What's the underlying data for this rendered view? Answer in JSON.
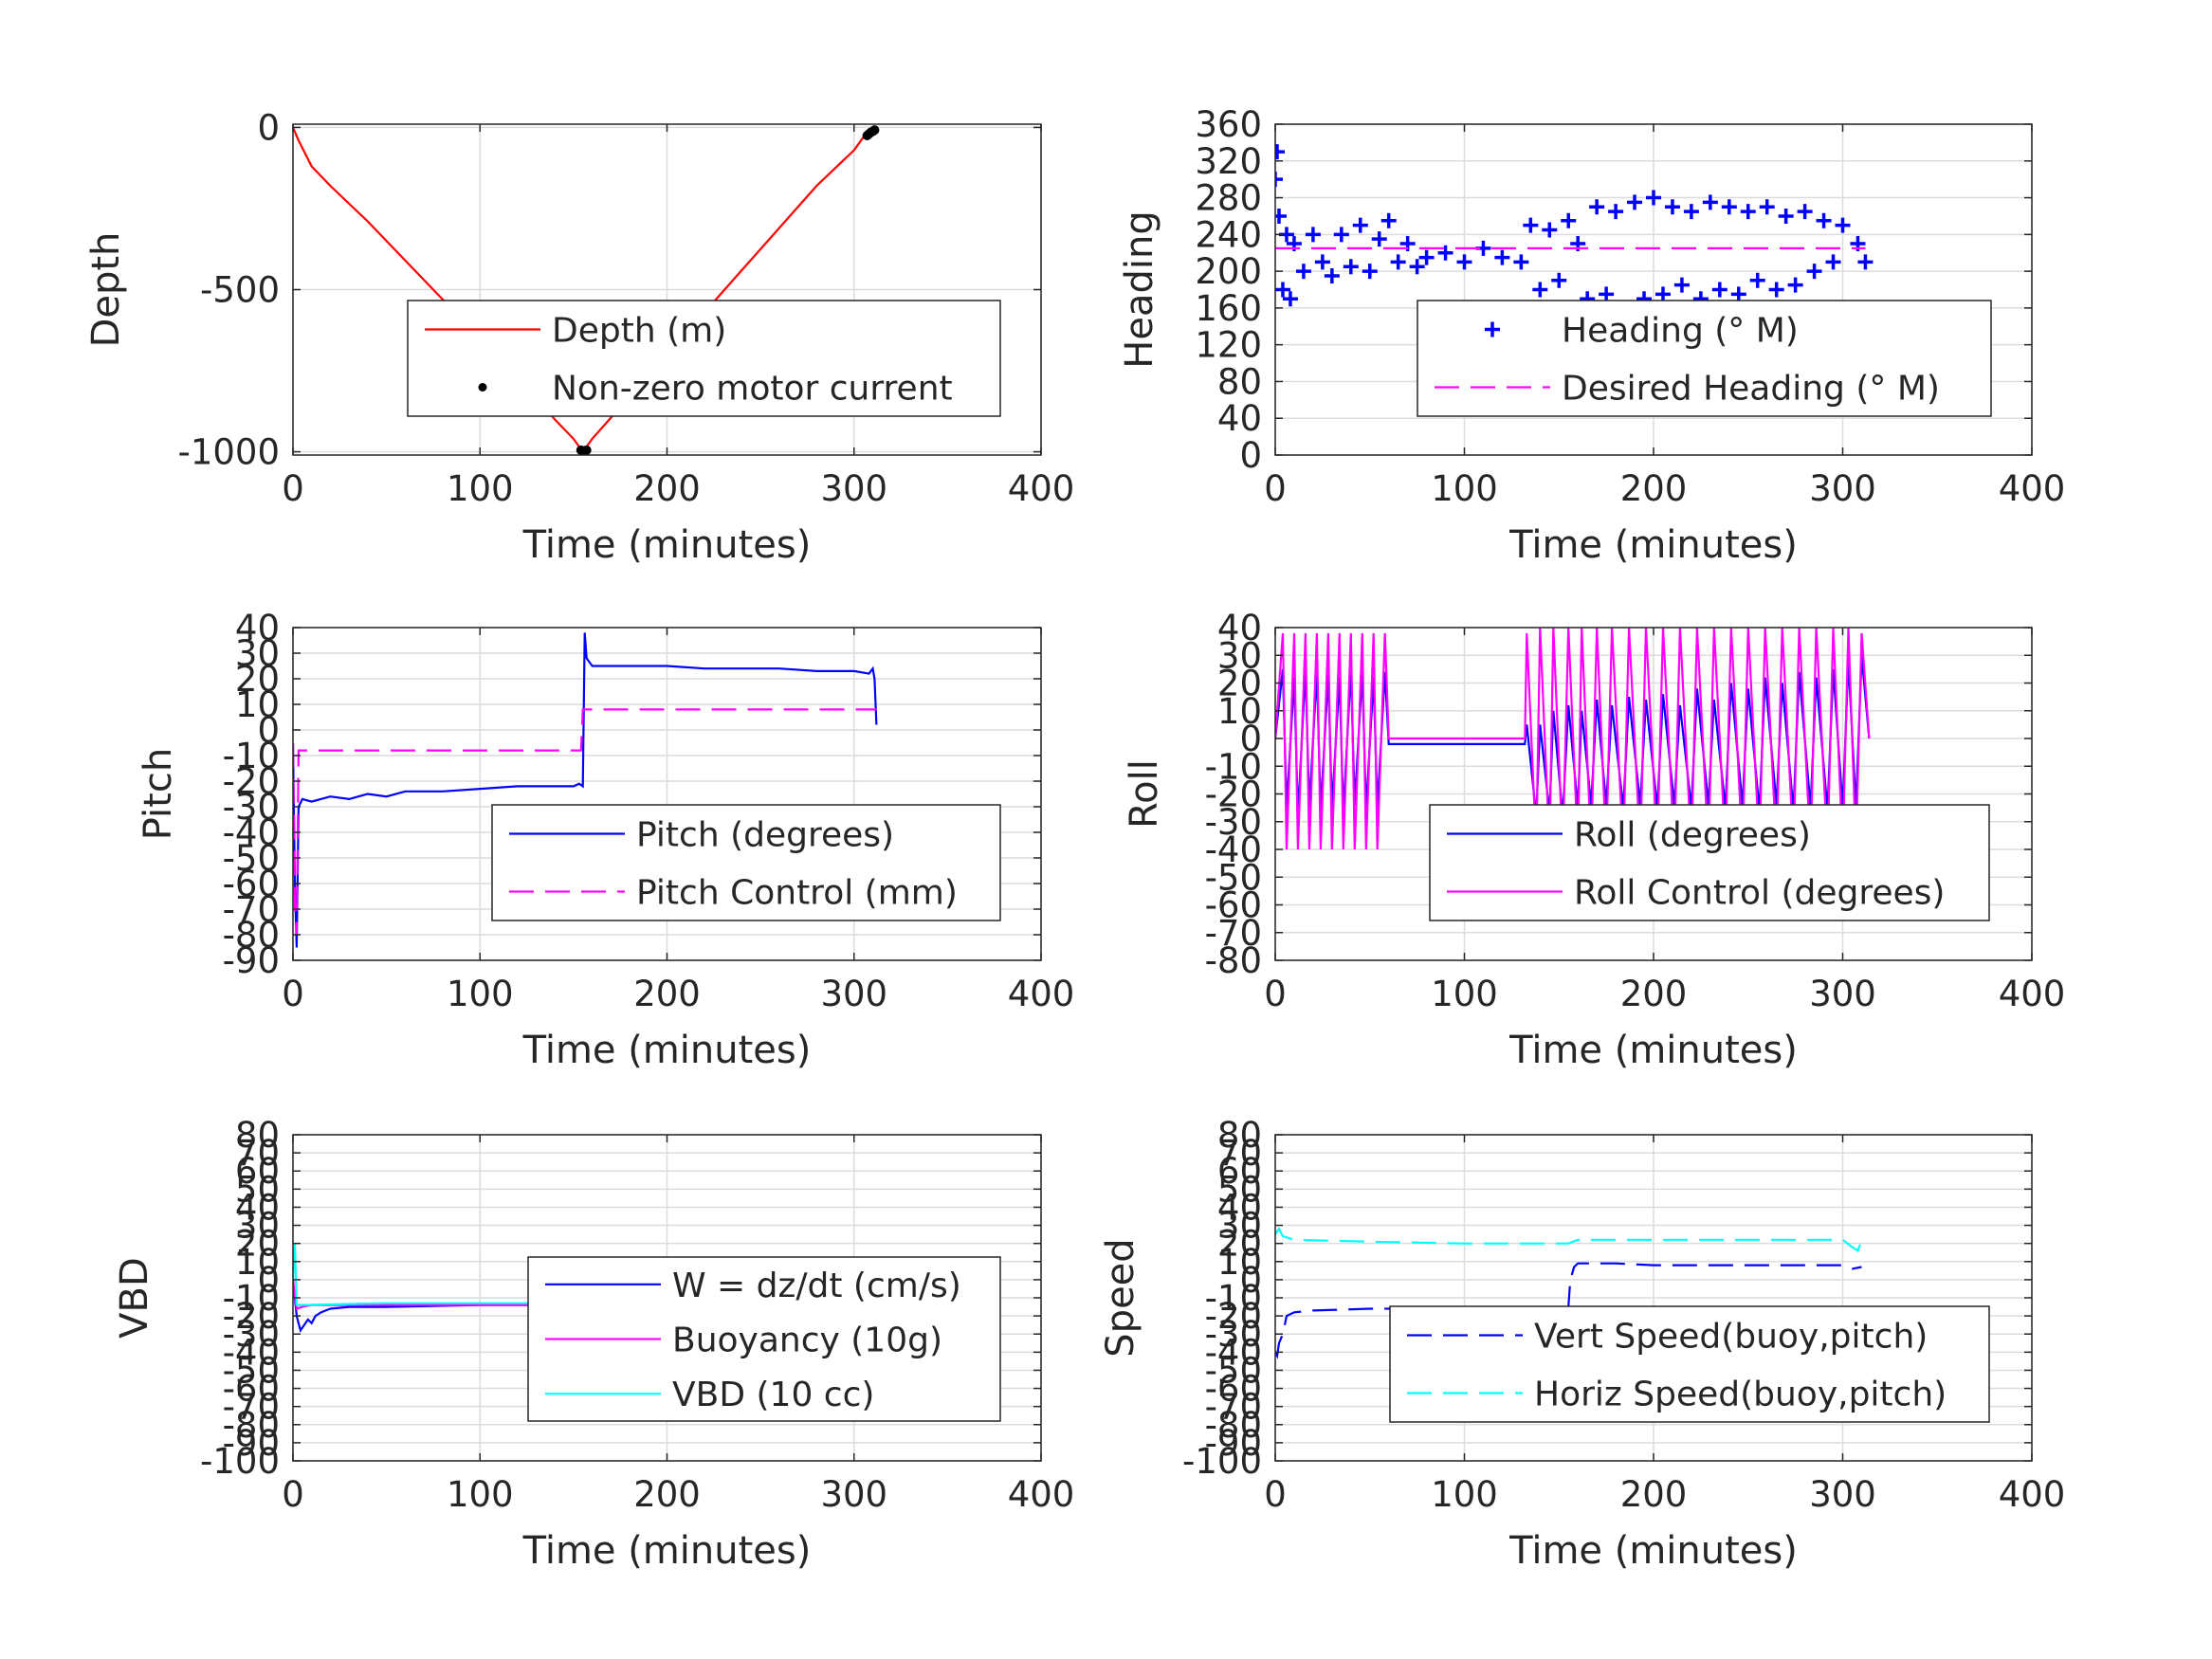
{
  "chart_data": [
    {
      "id": "depth",
      "type": "line",
      "xlabel": "Time (minutes)",
      "ylabel": "Depth",
      "xlim": [
        0,
        400
      ],
      "ylim": [
        -1010,
        10
      ],
      "xticks": [
        0,
        100,
        200,
        300,
        400
      ],
      "yticks": [
        -1000,
        -500,
        0
      ],
      "grid": true,
      "legend_location": "center-right",
      "series": [
        {
          "name": "Depth (m)",
          "style": "line",
          "color": "#ff0000",
          "x": [
            0,
            3,
            10,
            20,
            40,
            60,
            80,
            100,
            120,
            140,
            150,
            155,
            160,
            180,
            200,
            220,
            240,
            260,
            280,
            300,
            305,
            308,
            310
          ],
          "y": [
            0,
            -40,
            -120,
            -180,
            -290,
            -410,
            -530,
            -650,
            -770,
            -900,
            -960,
            -1000,
            -960,
            -830,
            -700,
            -570,
            -440,
            -310,
            -180,
            -70,
            -30,
            -15,
            -5
          ]
        },
        {
          "name": "Non-zero motor current",
          "style": "dots",
          "color": "#000000",
          "x": [
            154,
            155,
            156,
            157,
            307,
            308,
            309,
            310,
            311
          ],
          "y": [
            -995,
            -1000,
            -1000,
            -995,
            -25,
            -20,
            -15,
            -12,
            -8
          ]
        }
      ]
    },
    {
      "id": "heading",
      "type": "scatter",
      "xlabel": "Time (minutes)",
      "ylabel": "Heading",
      "xlim": [
        0,
        400
      ],
      "ylim": [
        0,
        360
      ],
      "xticks": [
        0,
        100,
        200,
        300,
        400
      ],
      "yticks": [
        0,
        40,
        80,
        120,
        160,
        200,
        240,
        280,
        320,
        360
      ],
      "grid": true,
      "legend_location": "lower-right",
      "series": [
        {
          "name": "Heading (° M)",
          "style": "plus",
          "color": "#0000ff",
          "x": [
            0,
            1,
            2,
            4,
            6,
            8,
            10,
            15,
            20,
            25,
            30,
            35,
            40,
            45,
            50,
            55,
            60,
            65,
            70,
            75,
            80,
            90,
            100,
            110,
            120,
            130,
            135,
            140,
            145,
            150,
            155,
            160,
            165,
            170,
            175,
            180,
            185,
            190,
            195,
            200,
            205,
            210,
            215,
            220,
            225,
            230,
            235,
            240,
            245,
            250,
            255,
            260,
            265,
            270,
            275,
            280,
            285,
            290,
            295,
            300,
            305,
            308,
            312
          ],
          "y": [
            300,
            330,
            260,
            180,
            240,
            170,
            230,
            200,
            240,
            210,
            195,
            240,
            205,
            250,
            200,
            235,
            255,
            210,
            230,
            205,
            215,
            220,
            210,
            225,
            215,
            210,
            250,
            180,
            245,
            190,
            255,
            230,
            170,
            270,
            175,
            265,
            160,
            275,
            170,
            280,
            175,
            270,
            185,
            265,
            170,
            275,
            180,
            270,
            175,
            265,
            190,
            270,
            180,
            260,
            185,
            265,
            200,
            255,
            210,
            250,
            145,
            230,
            210
          ]
        },
        {
          "name": "Desired Heading (° M)",
          "style": "dash",
          "color": "#ff00ff",
          "x": [
            0,
            50,
            100,
            150,
            200,
            250,
            312
          ],
          "y": [
            225,
            225,
            225,
            225,
            225,
            225,
            225
          ]
        }
      ]
    },
    {
      "id": "pitch",
      "type": "line",
      "xlabel": "Time (minutes)",
      "ylabel": "Pitch",
      "xlim": [
        0,
        400
      ],
      "ylim": [
        -90,
        40
      ],
      "xticks": [
        0,
        100,
        200,
        300,
        400
      ],
      "yticks": [
        -90,
        -80,
        -70,
        -60,
        -50,
        -40,
        -30,
        -20,
        -10,
        0,
        10,
        20,
        30,
        40
      ],
      "grid": true,
      "legend_location": "lower-right",
      "series": [
        {
          "name": "Pitch (degrees)",
          "style": "line",
          "color": "#0000ff",
          "x": [
            0,
            1,
            2,
            3,
            5,
            10,
            20,
            30,
            40,
            50,
            60,
            80,
            100,
            120,
            140,
            150,
            153,
            155,
            156,
            157,
            160,
            180,
            200,
            220,
            240,
            260,
            280,
            300,
            308,
            310,
            311,
            312
          ],
          "y": [
            -5,
            -60,
            -85,
            -30,
            -27,
            -28,
            -26,
            -27,
            -25,
            -26,
            -24,
            -24,
            -23,
            -22,
            -22,
            -22,
            -21,
            -22,
            38,
            28,
            25,
            25,
            25,
            24,
            24,
            24,
            23,
            23,
            22,
            24,
            20,
            2
          ]
        },
        {
          "name": "Pitch Control (mm)",
          "style": "dash",
          "color": "#ff00ff",
          "x": [
            0,
            1,
            2,
            3,
            5,
            50,
            100,
            150,
            154,
            155,
            156,
            200,
            250,
            300,
            310,
            312
          ],
          "y": [
            -5,
            -70,
            -80,
            -8,
            -8,
            -8,
            -8,
            -8,
            -8,
            8,
            8,
            8,
            8,
            8,
            8,
            8
          ]
        }
      ]
    },
    {
      "id": "roll",
      "type": "line",
      "xlabel": "Time (minutes)",
      "ylabel": "Roll",
      "xlim": [
        0,
        400
      ],
      "ylim": [
        -80,
        40
      ],
      "xticks": [
        0,
        100,
        200,
        300,
        400
      ],
      "yticks": [
        -80,
        -70,
        -60,
        -50,
        -40,
        -30,
        -20,
        -10,
        0,
        10,
        20,
        30,
        40
      ],
      "grid": true,
      "legend_location": "lower-right",
      "series": [
        {
          "name": "Roll (degrees)",
          "style": "line",
          "color": "#0000ff",
          "x": [
            0,
            4,
            6,
            10,
            12,
            16,
            18,
            22,
            24,
            28,
            30,
            34,
            36,
            40,
            42,
            46,
            48,
            52,
            54,
            58,
            60,
            70,
            100,
            125,
            132,
            133,
            138,
            140,
            145,
            147,
            152,
            155,
            160,
            162,
            167,
            170,
            175,
            178,
            184,
            187,
            193,
            196,
            202,
            205,
            211,
            214,
            220,
            223,
            229,
            232,
            238,
            241,
            247,
            250,
            256,
            259,
            265,
            268,
            274,
            277,
            283,
            286,
            292,
            295,
            300,
            303,
            307,
            310,
            314
          ],
          "y": [
            0,
            25,
            -25,
            22,
            -28,
            25,
            -25,
            24,
            -26,
            23,
            -25,
            22,
            -27,
            25,
            -24,
            24,
            -26,
            22,
            -25,
            24,
            -2,
            -2,
            -2,
            -2,
            -2,
            5,
            -28,
            5,
            -27,
            10,
            -28,
            12,
            -25,
            10,
            -24,
            14,
            -24,
            12,
            -25,
            15,
            -24,
            14,
            -25,
            16,
            -24,
            12,
            -25,
            18,
            -24,
            14,
            -25,
            20,
            -24,
            18,
            -26,
            22,
            -24,
            20,
            -26,
            24,
            -25,
            22,
            -26,
            25,
            -25,
            28,
            -25,
            30,
            0
          ]
        },
        {
          "name": "Roll Control (degrees)",
          "style": "line",
          "color": "#ff00ff",
          "x": [
            0,
            4,
            6,
            10,
            12,
            16,
            18,
            22,
            24,
            28,
            30,
            34,
            36,
            40,
            42,
            46,
            48,
            52,
            54,
            58,
            60,
            70,
            100,
            125,
            132,
            133,
            138,
            140,
            145,
            147,
            152,
            155,
            160,
            162,
            167,
            170,
            175,
            178,
            184,
            187,
            193,
            196,
            202,
            205,
            211,
            214,
            220,
            223,
            229,
            232,
            238,
            241,
            247,
            250,
            256,
            259,
            265,
            268,
            274,
            277,
            283,
            286,
            292,
            295,
            300,
            303,
            307,
            310,
            314
          ],
          "y": [
            0,
            38,
            -40,
            38,
            -40,
            38,
            -40,
            38,
            -40,
            38,
            -40,
            38,
            -40,
            38,
            -40,
            38,
            -40,
            38,
            -40,
            38,
            0,
            0,
            0,
            0,
            0,
            38,
            -40,
            40,
            -40,
            40,
            -40,
            40,
            -40,
            40,
            -40,
            40,
            -40,
            40,
            -40,
            40,
            -40,
            40,
            -40,
            40,
            -40,
            40,
            -40,
            40,
            -40,
            40,
            -40,
            40,
            -40,
            40,
            -40,
            40,
            -40,
            40,
            -40,
            40,
            -40,
            40,
            -40,
            40,
            -40,
            40,
            -40,
            38,
            0
          ]
        }
      ]
    },
    {
      "id": "vbd",
      "type": "line",
      "xlabel": "Time (minutes)",
      "ylabel": "VBD",
      "xlim": [
        0,
        400
      ],
      "ylim": [
        -100,
        80
      ],
      "xticks": [
        0,
        100,
        200,
        300,
        400
      ],
      "yticks": [
        -100,
        -90,
        -80,
        -70,
        -60,
        -50,
        -40,
        -30,
        -20,
        -10,
        0,
        10,
        20,
        30,
        40,
        50,
        60,
        70,
        80
      ],
      "grid": true,
      "legend_location": "lower-right",
      "series": [
        {
          "name": "W = dz/dt (cm/s)",
          "style": "line",
          "color": "#0000ff",
          "x": [
            0,
            2,
            4,
            6,
            8,
            10,
            12,
            15,
            20,
            30,
            50,
            100,
            140,
            150,
            154,
            155,
            156,
            158,
            160,
            165,
            180,
            200,
            250,
            300,
            305,
            310
          ],
          "y": [
            0,
            -20,
            -28,
            -25,
            -22,
            -24,
            -20,
            -18,
            -16,
            -15,
            -15,
            -14,
            -14,
            -12,
            -16,
            -12,
            5,
            8,
            10,
            12,
            11,
            11,
            11,
            10,
            9,
            5
          ]
        },
        {
          "name": "Buoyancy (10g)",
          "style": "line",
          "color": "#ff00ff",
          "x": [
            0,
            2,
            5,
            10,
            50,
            100,
            150,
            155,
            156,
            200,
            250,
            300,
            305,
            310
          ],
          "y": [
            0,
            -16,
            -15,
            -14,
            -14,
            -14,
            -14,
            -14,
            8,
            8,
            8,
            8,
            6,
            4
          ]
        },
        {
          "name": "VBD (10 cc)",
          "style": "line",
          "color": "#00ffff",
          "x": [
            0,
            1,
            2,
            5,
            50,
            100,
            150,
            155,
            156,
            200,
            250,
            300,
            310
          ],
          "y": [
            0,
            20,
            -14,
            -14,
            -13,
            -13,
            -13,
            -13,
            9,
            9,
            9,
            9,
            8
          ]
        }
      ]
    },
    {
      "id": "speed",
      "type": "line",
      "xlabel": "Time (minutes)",
      "ylabel": "Speed",
      "xlim": [
        0,
        400
      ],
      "ylim": [
        -100,
        80
      ],
      "xticks": [
        0,
        100,
        200,
        300,
        400
      ],
      "yticks": [
        -100,
        -90,
        -80,
        -70,
        -60,
        -50,
        -40,
        -30,
        -20,
        -10,
        0,
        10,
        20,
        30,
        40,
        50,
        60,
        70,
        80
      ],
      "grid": true,
      "legend_location": "lower-right",
      "series": [
        {
          "name": "Vert Speed(buoy,pitch)",
          "style": "dash",
          "color": "#0000ff",
          "x": [
            0,
            1,
            2,
            4,
            6,
            10,
            20,
            50,
            100,
            150,
            155,
            156,
            158,
            160,
            180,
            200,
            250,
            300,
            305,
            310
          ],
          "y": [
            -40,
            -42,
            -35,
            -30,
            -20,
            -18,
            -17,
            -16,
            -16,
            -15,
            -15,
            0,
            7,
            9,
            9,
            8,
            8,
            8,
            6,
            7
          ]
        },
        {
          "name": "Horiz Speed(buoy,pitch)",
          "style": "dash",
          "color": "#00ffff",
          "x": [
            0,
            2,
            4,
            10,
            50,
            100,
            150,
            155,
            160,
            200,
            250,
            300,
            305,
            308,
            310
          ],
          "y": [
            25,
            28,
            24,
            22,
            21,
            20,
            20,
            20,
            22,
            22,
            22,
            22,
            18,
            16,
            22
          ]
        }
      ]
    }
  ]
}
